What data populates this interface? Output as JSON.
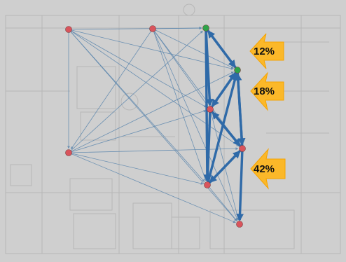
{
  "annotations": [
    {
      "id": "a1",
      "label": "12%"
    },
    {
      "id": "a2",
      "label": "18%"
    },
    {
      "id": "a3",
      "label": "42%"
    }
  ],
  "colors": {
    "background": "#cfcfcf",
    "edge_thin": "#5b86ad",
    "edge_thick": "#2f6aa8",
    "node_red": "#d9545c",
    "node_green": "#2fa34a",
    "arrow_fill": "#fbb829"
  }
}
